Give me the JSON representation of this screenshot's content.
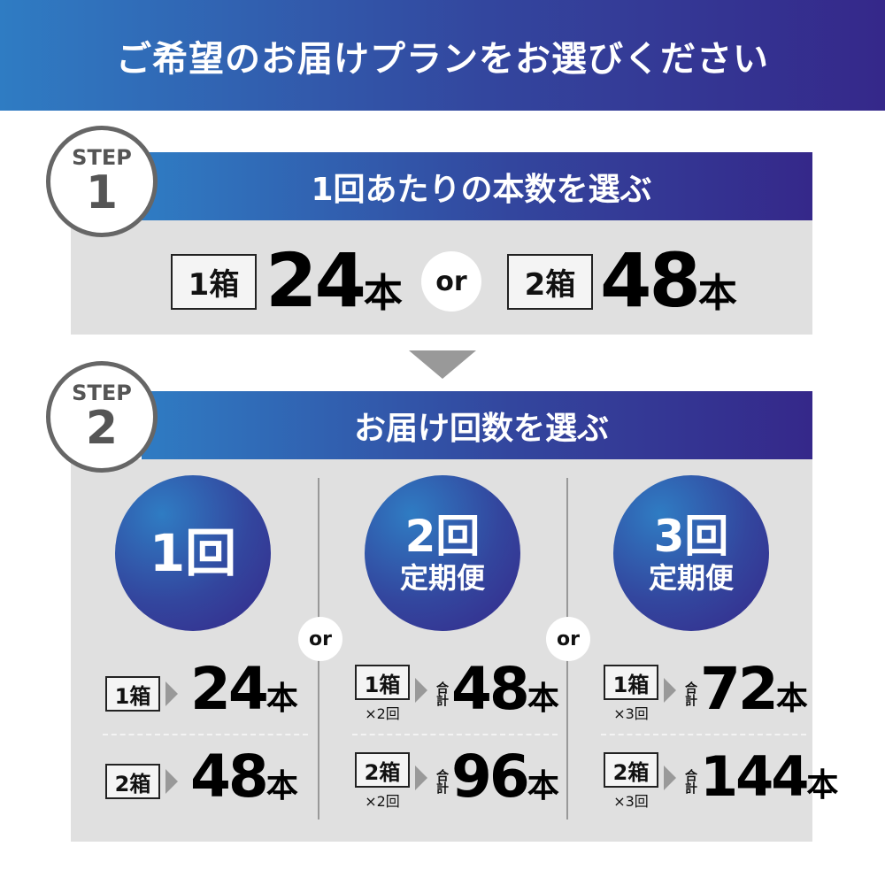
{
  "header": {
    "title": "ご希望のお届けプランをお選びください"
  },
  "step1": {
    "label": "STEP",
    "number": "1",
    "title": "1回あたりの本数を選ぶ",
    "options": [
      {
        "box": "1箱",
        "count": "24",
        "unit": "本"
      },
      {
        "box": "2箱",
        "count": "48",
        "unit": "本"
      }
    ],
    "or": "or"
  },
  "step2": {
    "label": "STEP",
    "number": "2",
    "title": "お届け回数を選ぶ",
    "or": "or",
    "plans": [
      {
        "name": "1回",
        "sub": "",
        "rows": [
          {
            "box": "1箱",
            "times": "",
            "total_label": "",
            "count": "24",
            "unit": "本"
          },
          {
            "box": "2箱",
            "times": "",
            "total_label": "",
            "count": "48",
            "unit": "本"
          }
        ]
      },
      {
        "name": "2回",
        "sub": "定期便",
        "rows": [
          {
            "box": "1箱",
            "times": "×2回",
            "total_label": "合計",
            "count": "48",
            "unit": "本"
          },
          {
            "box": "2箱",
            "times": "×2回",
            "total_label": "合計",
            "count": "96",
            "unit": "本"
          }
        ]
      },
      {
        "name": "3回",
        "sub": "定期便",
        "rows": [
          {
            "box": "1箱",
            "times": "×3回",
            "total_label": "合計",
            "count": "72",
            "unit": "本"
          },
          {
            "box": "2箱",
            "times": "×3回",
            "total_label": "合計",
            "count": "144",
            "unit": "本"
          }
        ]
      }
    ]
  },
  "colors": {
    "gradient_start": "#2f7cc3",
    "gradient_end": "#35288a",
    "panel": "#e0e0e0",
    "arrow": "#999999"
  },
  "icons": {
    "step_divider": "down-triangle-icon",
    "row_arrow": "right-triangle-icon"
  }
}
